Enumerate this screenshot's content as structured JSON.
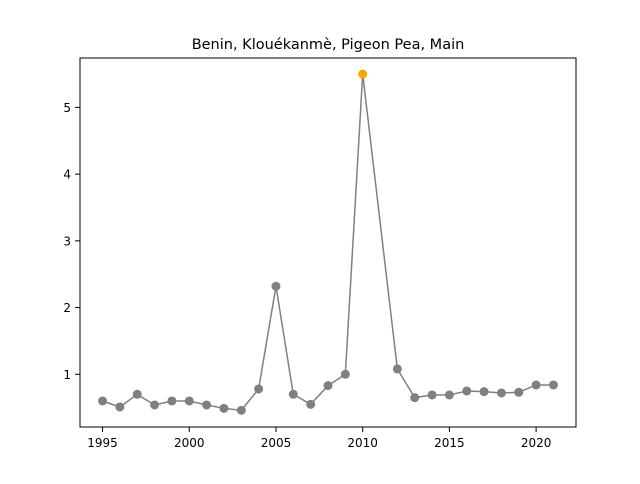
{
  "chart_data": {
    "type": "line",
    "title": "Benin, Klouékanmè, Pigeon Pea, Main",
    "xlabel": "",
    "ylabel": "",
    "xlim": [
      1993.7,
      2022.3
    ],
    "ylim": [
      0.21,
      5.74
    ],
    "x_ticks": [
      1995,
      2000,
      2005,
      2010,
      2015,
      2020
    ],
    "y_ticks": [
      1,
      2,
      3,
      4,
      5
    ],
    "grid": false,
    "colors": {
      "line": "#808080",
      "marker": "#808080",
      "highlight": "#ffa500"
    },
    "x": [
      1995,
      1996,
      1997,
      1998,
      1999,
      2000,
      2001,
      2002,
      2003,
      2004,
      2005,
      2006,
      2007,
      2008,
      2009,
      2010,
      2012,
      2013,
      2014,
      2015,
      2016,
      2017,
      2018,
      2019,
      2020,
      2021
    ],
    "values": [
      0.6,
      0.51,
      0.7,
      0.54,
      0.6,
      0.6,
      0.54,
      0.49,
      0.46,
      0.78,
      2.32,
      0.7,
      0.55,
      0.83,
      1.0,
      5.5,
      1.08,
      0.65,
      0.69,
      0.69,
      0.75,
      0.74,
      0.72,
      0.73,
      0.84,
      0.84
    ],
    "highlight": {
      "x": 2010,
      "y": 5.5
    }
  }
}
